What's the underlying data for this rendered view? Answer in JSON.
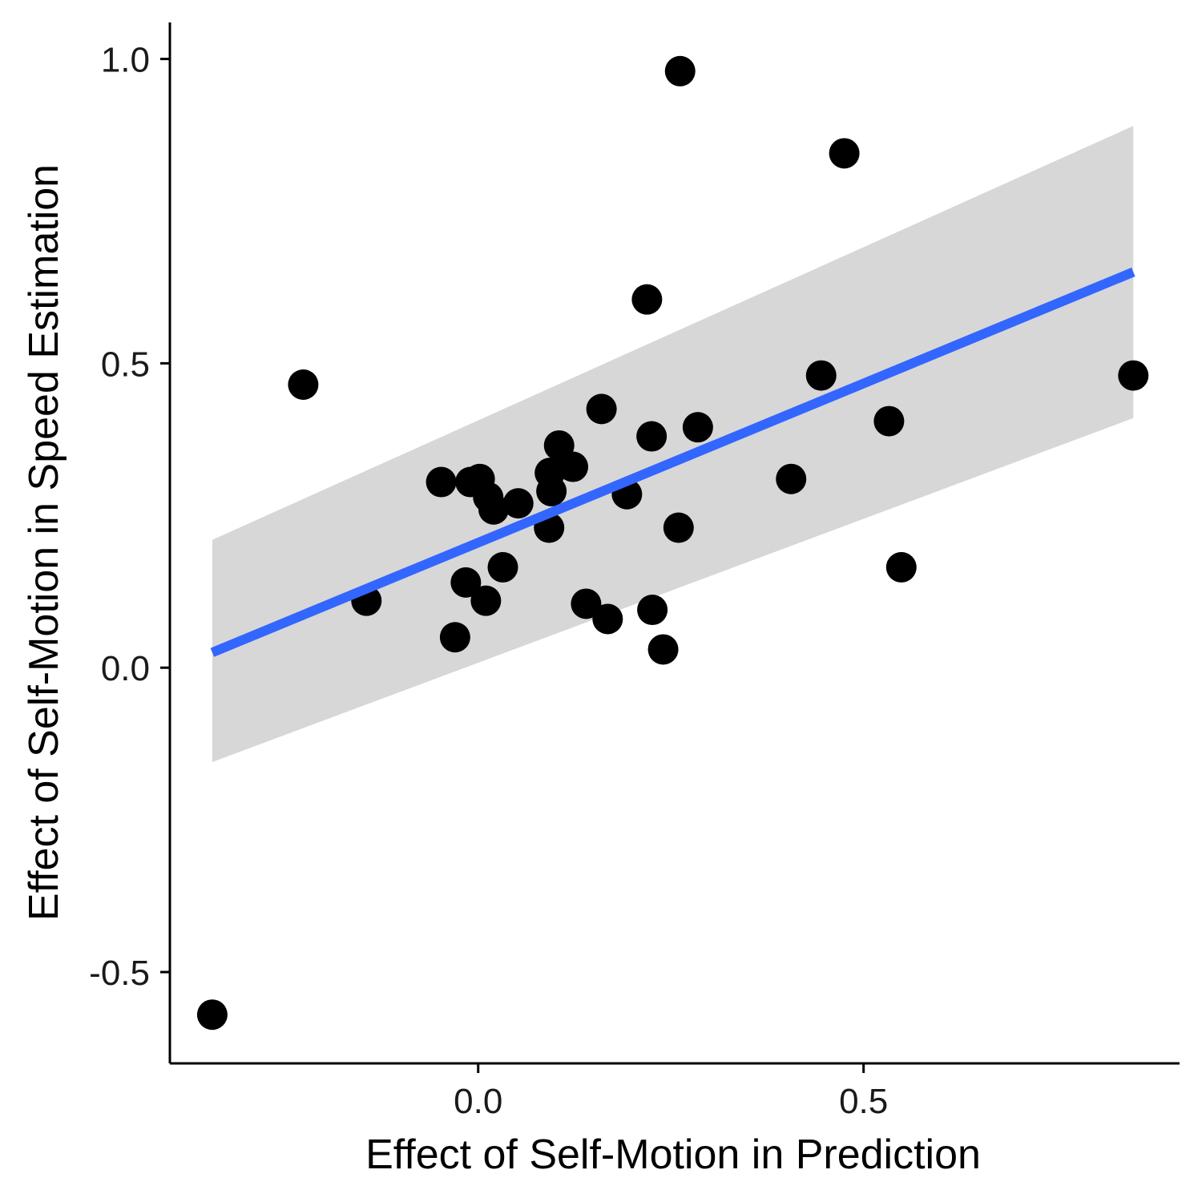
{
  "chart_data": {
    "type": "scatter",
    "title": "",
    "xlabel": "Effect of Self-Motion in Prediction",
    "ylabel": "Effect of Self-Motion in Speed Estimation",
    "xlim": [
      -0.4,
      0.91
    ],
    "ylim": [
      -0.65,
      1.06
    ],
    "x_ticks": [
      0.0,
      0.5
    ],
    "x_tick_labels": [
      "0.0",
      "0.5"
    ],
    "y_ticks": [
      -0.5,
      0.0,
      0.5,
      1.0
    ],
    "y_tick_labels": [
      "-0.5",
      "0.0",
      "0.5",
      "1.0"
    ],
    "grid": false,
    "legend": "none",
    "colors": {
      "points": "#000000",
      "fit_line": "#3366ff",
      "ribbon": "#d3d3d3",
      "axis": "#000000"
    },
    "series": [
      {
        "type": "scatter",
        "x": [
          -0.345,
          -0.227,
          -0.145,
          -0.048,
          -0.03,
          -0.016,
          -0.01,
          0.002,
          0.01,
          0.013,
          0.02,
          0.032,
          0.052,
          0.093,
          0.095,
          0.092,
          0.105,
          0.123,
          0.14,
          0.16,
          0.168,
          0.193,
          0.219,
          0.225,
          0.226,
          0.24,
          0.26,
          0.262,
          0.285,
          0.406,
          0.445,
          0.475,
          0.533,
          0.549,
          0.85
        ],
        "y": [
          -0.57,
          0.465,
          0.11,
          0.305,
          0.05,
          0.14,
          0.305,
          0.31,
          0.11,
          0.28,
          0.26,
          0.165,
          0.27,
          0.32,
          0.29,
          0.23,
          0.365,
          0.33,
          0.105,
          0.425,
          0.08,
          0.285,
          0.605,
          0.38,
          0.095,
          0.03,
          0.23,
          0.98,
          0.395,
          0.31,
          0.48,
          0.845,
          0.405,
          0.165,
          0.48
        ]
      },
      {
        "type": "linear-fit",
        "x": [
          -0.345,
          0.85
        ],
        "y": [
          0.025,
          0.65
        ],
        "ci_upper": [
          0.21,
          0.89
        ],
        "ci_lower": [
          -0.155,
          0.41
        ]
      }
    ]
  }
}
